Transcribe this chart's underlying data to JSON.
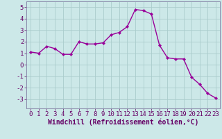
{
  "x": [
    0,
    1,
    2,
    3,
    4,
    5,
    6,
    7,
    8,
    9,
    10,
    11,
    12,
    13,
    14,
    15,
    16,
    17,
    18,
    19,
    20,
    21,
    22,
    23
  ],
  "y": [
    1.1,
    1.0,
    1.6,
    1.4,
    0.9,
    0.9,
    2.0,
    1.8,
    1.8,
    1.9,
    2.6,
    2.8,
    3.3,
    4.8,
    4.7,
    4.4,
    1.7,
    0.6,
    0.5,
    0.5,
    -1.1,
    -1.7,
    -2.5,
    -2.9
  ],
  "line_color": "#990099",
  "marker": "D",
  "marker_size": 2.2,
  "xlabel": "Windchill (Refroidissement éolien,°C)",
  "xlabel_fontsize": 7,
  "xlim": [
    -0.5,
    23.5
  ],
  "ylim": [
    -3.8,
    5.5
  ],
  "yticks": [
    -3,
    -2,
    -1,
    0,
    1,
    2,
    3,
    4,
    5
  ],
  "xticks": [
    0,
    1,
    2,
    3,
    4,
    5,
    6,
    7,
    8,
    9,
    10,
    11,
    12,
    13,
    14,
    15,
    16,
    17,
    18,
    19,
    20,
    21,
    22,
    23
  ],
  "background_color": "#cce8e8",
  "grid_color": "#aacccc",
  "tick_fontsize": 6.5,
  "line_width": 1.0,
  "fig_bg": "#cce8e8",
  "spine_color": "#8888aa"
}
